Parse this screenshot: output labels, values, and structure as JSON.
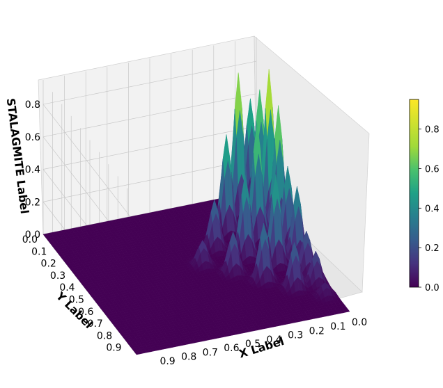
{
  "chart_data": {
    "type": "surface3d",
    "title": "",
    "xlabel": "X Label",
    "ylabel": "Y Label",
    "zlabel": "STALAGMITE Label",
    "xlim": [
      0,
      1
    ],
    "ylim": [
      0,
      1
    ],
    "zlim": [
      0,
      0.95
    ],
    "x_ticks": [
      "0.0",
      "0.1",
      "0.2",
      "0.3",
      "0.4",
      "0.5",
      "0.6",
      "0.7",
      "0.8",
      "0.9"
    ],
    "y_ticks": [
      "0.0",
      "0.1",
      "0.2",
      "0.3",
      "0.4",
      "0.5",
      "0.6",
      "0.7",
      "0.8",
      "0.9"
    ],
    "z_ticks": [
      "0.0",
      "0.2",
      "0.4",
      "0.6",
      "0.8"
    ],
    "colormap": "viridis",
    "colorbar": {
      "ticks": [
        "0.0",
        "0.2",
        "0.4",
        "0.6",
        "0.8"
      ],
      "range": [
        0,
        0.95
      ]
    },
    "grid": true,
    "peaks": [
      {
        "x": 0.05,
        "y": 0.05,
        "z": 0.62
      },
      {
        "x": 0.05,
        "y": 0.15,
        "z": 0.75
      },
      {
        "x": 0.05,
        "y": 0.25,
        "z": 0.95
      },
      {
        "x": 0.05,
        "y": 0.35,
        "z": 0.8
      },
      {
        "x": 0.05,
        "y": 0.45,
        "z": 0.5
      },
      {
        "x": 0.05,
        "y": 0.55,
        "z": 0.45
      },
      {
        "x": 0.05,
        "y": 0.65,
        "z": 0.25
      },
      {
        "x": 0.05,
        "y": 0.75,
        "z": 0.2
      },
      {
        "x": 0.05,
        "y": 0.85,
        "z": 0.08
      },
      {
        "x": 0.15,
        "y": 0.15,
        "z": 0.88
      },
      {
        "x": 0.15,
        "y": 0.35,
        "z": 0.72
      },
      {
        "x": 0.15,
        "y": 0.55,
        "z": 0.55
      },
      {
        "x": 0.15,
        "y": 0.75,
        "z": 0.28
      },
      {
        "x": 0.25,
        "y": 0.25,
        "z": 0.6
      },
      {
        "x": 0.25,
        "y": 0.45,
        "z": 0.5
      },
      {
        "x": 0.25,
        "y": 0.65,
        "z": 0.35
      },
      {
        "x": 0.35,
        "y": 0.35,
        "z": 0.3
      },
      {
        "x": 0.35,
        "y": 0.55,
        "z": 0.25
      },
      {
        "x": 0.45,
        "y": 0.45,
        "z": 0.15
      }
    ]
  }
}
